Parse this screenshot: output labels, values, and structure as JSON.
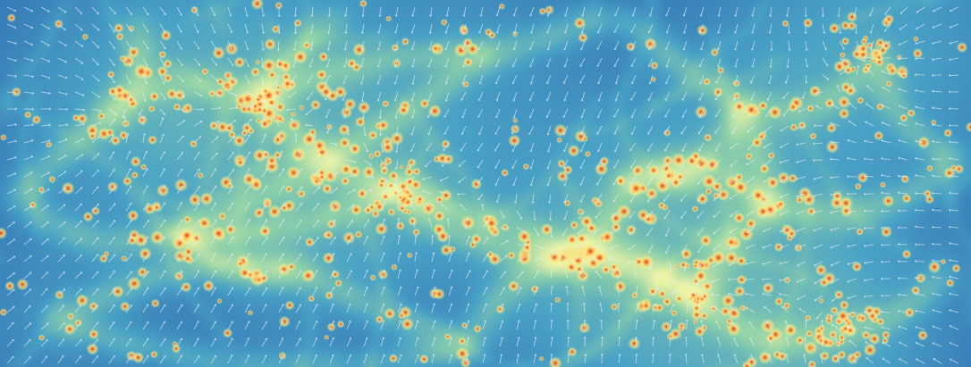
{
  "image": {
    "kind": "cosmic-web density field with velocity vectors",
    "colormap": {
      "low": "#2f6db4",
      "mid_low": "#4aa3c6",
      "mid": "#8fd1a9",
      "mid_high": "#eef5a6",
      "high": "#fdd36a",
      "peak": "#d7301f"
    },
    "vector_color": "#e6eef6",
    "has_text": false
  }
}
